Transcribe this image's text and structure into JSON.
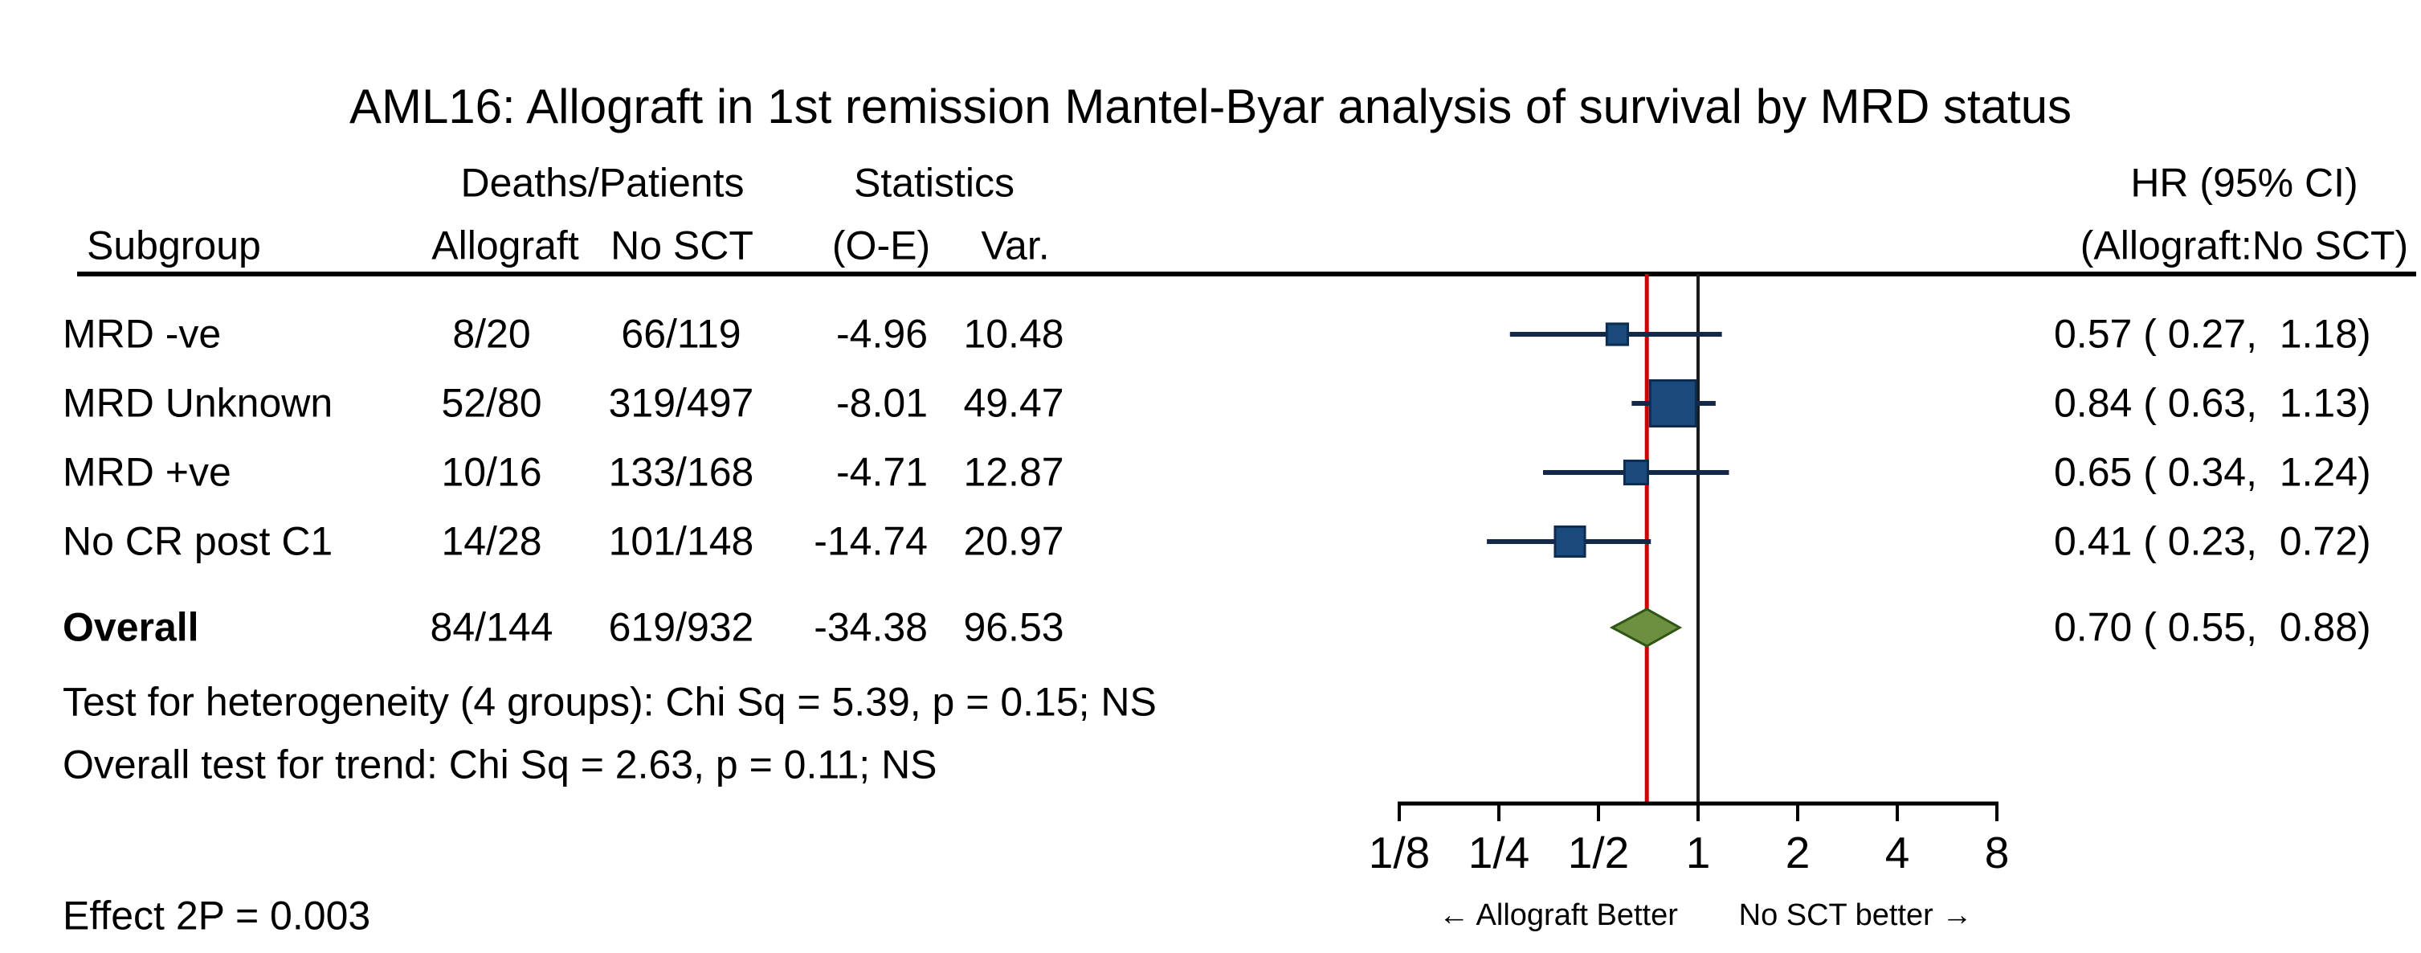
{
  "title": "AML16: Allograft in 1st remission Mantel-Byar analysis of survival by MRD status",
  "table": {
    "group_headers": {
      "deaths_patients": "Deaths/Patients",
      "statistics": "Statistics",
      "hr_line1": "HR (95% CI)",
      "hr_line2": "(Allograft:No SCT)"
    },
    "col_headers": {
      "subgroup": "Subgroup",
      "allograft": "Allograft",
      "no_sct": "No SCT",
      "o_minus_e": "(O-E)",
      "var": "Var."
    },
    "rows": [
      {
        "subgroup": "MRD -ve",
        "allograft": "8/20",
        "no_sct": "66/119",
        "o_minus_e": "-4.96",
        "var": "10.48",
        "hr_ci": "0.57 ( 0.27,  1.18)"
      },
      {
        "subgroup": "MRD Unknown",
        "allograft": "52/80",
        "no_sct": "319/497",
        "o_minus_e": "-8.01",
        "var": "49.47",
        "hr_ci": "0.84 ( 0.63,  1.13)"
      },
      {
        "subgroup": "MRD +ve",
        "allograft": "10/16",
        "no_sct": "133/168",
        "o_minus_e": "-4.71",
        "var": "12.87",
        "hr_ci": "0.65 ( 0.34,  1.24)"
      },
      {
        "subgroup": "No CR post C1",
        "allograft": "14/28",
        "no_sct": "101/148",
        "o_minus_e": "-14.74",
        "var": "20.97",
        "hr_ci": "0.41 ( 0.23,  0.72)"
      }
    ],
    "overall_row": {
      "subgroup": "Overall",
      "allograft": "84/144",
      "no_sct": "619/932",
      "o_minus_e": "-34.38",
      "var": "96.53",
      "hr_ci": "0.70 ( 0.55,  0.88)"
    }
  },
  "footnotes": {
    "heterogeneity": "Test for heterogeneity (4 groups): Chi Sq = 5.39, p = 0.15; NS",
    "trend": "Overall test for trend: Chi Sq = 2.63, p = 0.11; NS",
    "effect": "Effect 2P = 0.003"
  },
  "chart_data": {
    "type": "forest",
    "title": "AML16: Allograft in 1st remission Mantel-Byar analysis of survival by MRD status",
    "x_scale": "log2",
    "xlim": [
      0.125,
      8
    ],
    "axis_ticks": [
      {
        "label": "1/8",
        "value": 0.125
      },
      {
        "label": "1/4",
        "value": 0.25
      },
      {
        "label": "1/2",
        "value": 0.5
      },
      {
        "label": "1",
        "value": 1
      },
      {
        "label": "2",
        "value": 2
      },
      {
        "label": "4",
        "value": 4
      },
      {
        "label": "8",
        "value": 8
      }
    ],
    "rows": [
      {
        "name": "MRD -ve",
        "hr": 0.57,
        "ci_low": 0.27,
        "ci_high": 1.18,
        "o_minus_e": -4.96,
        "var": 10.48
      },
      {
        "name": "MRD Unknown",
        "hr": 0.84,
        "ci_low": 0.63,
        "ci_high": 1.13,
        "o_minus_e": -8.01,
        "var": 49.47
      },
      {
        "name": "MRD +ve",
        "hr": 0.65,
        "ci_low": 0.34,
        "ci_high": 1.24,
        "o_minus_e": -4.71,
        "var": 12.87
      },
      {
        "name": "No CR post C1",
        "hr": 0.41,
        "ci_low": 0.23,
        "ci_high": 0.72,
        "o_minus_e": -14.74,
        "var": 20.97
      }
    ],
    "overall": {
      "name": "Overall",
      "hr": 0.7,
      "ci_low": 0.55,
      "ci_high": 0.88,
      "o_minus_e": -34.38,
      "var": 96.53
    },
    "reference_value": 1,
    "direction_labels": {
      "left": "← Allograft Better",
      "right": "No SCT better →"
    },
    "colors": {
      "square": "#1a4a7b",
      "square_border": "#0d2c52",
      "ci_line": "#14294a",
      "ref_line": "#1a1a1a",
      "overall_line": "#cc0000",
      "diamond": "#6d9040",
      "diamond_border": "#2e5716",
      "axis": "#000000"
    }
  }
}
